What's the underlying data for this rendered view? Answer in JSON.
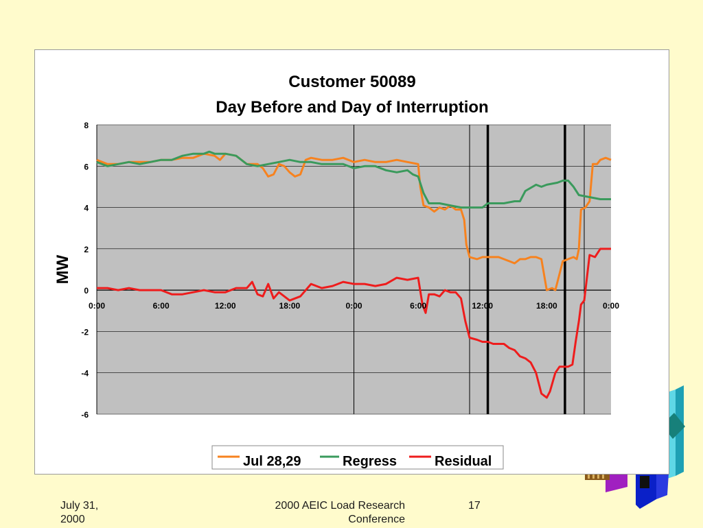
{
  "footer": {
    "date": "July 31, 2000",
    "conference": "2000 AEIC Load Research Conference",
    "page_number": "17"
  },
  "colors": {
    "slide_background": "#FFFBCC",
    "plot_background": "#C0C0C0",
    "jul_series": "#F7821E",
    "regress_series": "#3A9A5C",
    "residual_series": "#EE1C1C"
  },
  "chart_data": {
    "type": "line",
    "title": "Customer 50089",
    "subtitle": "Day Before and Day of Interruption",
    "xlabel": "",
    "ylabel": "MW",
    "ylim": [
      -6,
      8
    ],
    "yticks": [
      8,
      6,
      4,
      2,
      0,
      -2,
      -4,
      -6
    ],
    "xlim": [
      0,
      48
    ],
    "xticks": [
      {
        "value": 0,
        "label": "0:00"
      },
      {
        "value": 6,
        "label": "6:00"
      },
      {
        "value": 12,
        "label": "12:00"
      },
      {
        "value": 18,
        "label": "18:00"
      },
      {
        "value": 24,
        "label": "0:00"
      },
      {
        "value": 30,
        "label": "6:00"
      },
      {
        "value": 36,
        "label": "12:00"
      },
      {
        "value": 42,
        "label": "18:00"
      },
      {
        "value": 48,
        "label": "0:00"
      }
    ],
    "grid": true,
    "legend_position": "bottom",
    "vertical_markers": [
      {
        "x": 24,
        "style": "thin"
      },
      {
        "x": 34.8,
        "style": "thin"
      },
      {
        "x": 36.5,
        "style": "thick"
      },
      {
        "x": 43.7,
        "style": "thick"
      },
      {
        "x": 45.5,
        "style": "thin"
      }
    ],
    "series": [
      {
        "name": "Jul 28,29",
        "color": "#F7821E",
        "points": [
          [
            0,
            6.3
          ],
          [
            1,
            6.1
          ],
          [
            2,
            6.1
          ],
          [
            3,
            6.2
          ],
          [
            4,
            6.2
          ],
          [
            5,
            6.2
          ],
          [
            6,
            6.3
          ],
          [
            7,
            6.3
          ],
          [
            8,
            6.4
          ],
          [
            9,
            6.4
          ],
          [
            10,
            6.6
          ],
          [
            11,
            6.5
          ],
          [
            11.5,
            6.3
          ],
          [
            12,
            6.6
          ],
          [
            13,
            6.5
          ],
          [
            13.5,
            6.3
          ],
          [
            14,
            6.1
          ],
          [
            15,
            6.1
          ],
          [
            15.5,
            5.9
          ],
          [
            16,
            5.5
          ],
          [
            16.5,
            5.6
          ],
          [
            17,
            6.1
          ],
          [
            17.5,
            6.0
          ],
          [
            18,
            5.7
          ],
          [
            18.5,
            5.5
          ],
          [
            19,
            5.6
          ],
          [
            19.5,
            6.3
          ],
          [
            20,
            6.4
          ],
          [
            21,
            6.3
          ],
          [
            22,
            6.3
          ],
          [
            23,
            6.4
          ],
          [
            24,
            6.2
          ],
          [
            25,
            6.3
          ],
          [
            26,
            6.2
          ],
          [
            27,
            6.2
          ],
          [
            28,
            6.3
          ],
          [
            29,
            6.2
          ],
          [
            30,
            6.1
          ],
          [
            30.2,
            5.0
          ],
          [
            30.5,
            4.1
          ],
          [
            31,
            4.0
          ],
          [
            31.5,
            3.8
          ],
          [
            32,
            4.0
          ],
          [
            32.5,
            3.9
          ],
          [
            33,
            4.1
          ],
          [
            33.5,
            3.9
          ],
          [
            34,
            3.9
          ],
          [
            34.3,
            3.4
          ],
          [
            34.5,
            2.2
          ],
          [
            34.8,
            1.6
          ],
          [
            35.5,
            1.5
          ],
          [
            36,
            1.6
          ],
          [
            37,
            1.6
          ],
          [
            37.5,
            1.6
          ],
          [
            38,
            1.5
          ],
          [
            38.5,
            1.4
          ],
          [
            39,
            1.3
          ],
          [
            39.5,
            1.5
          ],
          [
            40,
            1.5
          ],
          [
            40.5,
            1.6
          ],
          [
            41,
            1.6
          ],
          [
            41.5,
            1.5
          ],
          [
            41.8,
            0.6
          ],
          [
            42,
            0.0
          ],
          [
            42.5,
            0.1
          ],
          [
            42.8,
            0.0
          ],
          [
            43,
            0.4
          ],
          [
            43.5,
            1.4
          ],
          [
            44,
            1.5
          ],
          [
            44.5,
            1.6
          ],
          [
            44.8,
            1.5
          ],
          [
            45,
            2.0
          ],
          [
            45.2,
            3.9
          ],
          [
            45.6,
            4.0
          ],
          [
            46,
            4.3
          ],
          [
            46.3,
            6.1
          ],
          [
            46.7,
            6.1
          ],
          [
            47,
            6.3
          ],
          [
            47.5,
            6.4
          ],
          [
            48,
            6.3
          ]
        ]
      },
      {
        "name": "Regress",
        "color": "#3A9A5C",
        "points": [
          [
            0,
            6.2
          ],
          [
            1,
            6.0
          ],
          [
            2,
            6.1
          ],
          [
            3,
            6.2
          ],
          [
            4,
            6.1
          ],
          [
            5,
            6.2
          ],
          [
            6,
            6.3
          ],
          [
            7,
            6.3
          ],
          [
            8,
            6.5
          ],
          [
            9,
            6.6
          ],
          [
            10,
            6.6
          ],
          [
            10.5,
            6.7
          ],
          [
            11,
            6.6
          ],
          [
            12,
            6.6
          ],
          [
            13,
            6.5
          ],
          [
            14,
            6.1
          ],
          [
            15,
            6.0
          ],
          [
            16,
            6.1
          ],
          [
            17,
            6.2
          ],
          [
            18,
            6.3
          ],
          [
            19,
            6.2
          ],
          [
            20,
            6.2
          ],
          [
            21,
            6.1
          ],
          [
            22,
            6.1
          ],
          [
            23,
            6.1
          ],
          [
            24,
            5.9
          ],
          [
            25,
            6.0
          ],
          [
            26,
            6.0
          ],
          [
            27,
            5.8
          ],
          [
            28,
            5.7
          ],
          [
            29,
            5.8
          ],
          [
            29.5,
            5.6
          ],
          [
            30,
            5.5
          ],
          [
            30.5,
            4.7
          ],
          [
            31,
            4.2
          ],
          [
            32,
            4.2
          ],
          [
            33,
            4.1
          ],
          [
            34,
            4.0
          ],
          [
            35,
            4.0
          ],
          [
            36,
            4.0
          ],
          [
            36.5,
            4.2
          ],
          [
            37,
            4.2
          ],
          [
            38,
            4.2
          ],
          [
            39,
            4.3
          ],
          [
            39.5,
            4.3
          ],
          [
            40,
            4.8
          ],
          [
            41,
            5.1
          ],
          [
            41.5,
            5.0
          ],
          [
            42,
            5.1
          ],
          [
            43,
            5.2
          ],
          [
            43.5,
            5.3
          ],
          [
            44,
            5.3
          ],
          [
            44.5,
            5.0
          ],
          [
            45,
            4.6
          ],
          [
            46,
            4.5
          ],
          [
            47,
            4.4
          ],
          [
            48,
            4.4
          ]
        ]
      },
      {
        "name": "Residual",
        "color": "#EE1C1C",
        "points": [
          [
            0,
            0.1
          ],
          [
            1,
            0.1
          ],
          [
            2,
            0.0
          ],
          [
            3,
            0.1
          ],
          [
            4,
            0.0
          ],
          [
            5,
            0.0
          ],
          [
            6,
            0.0
          ],
          [
            7,
            -0.2
          ],
          [
            8,
            -0.2
          ],
          [
            9,
            -0.1
          ],
          [
            10,
            0.0
          ],
          [
            11,
            -0.1
          ],
          [
            12,
            -0.1
          ],
          [
            13,
            0.1
          ],
          [
            14,
            0.1
          ],
          [
            14.5,
            0.4
          ],
          [
            15,
            -0.2
          ],
          [
            15.5,
            -0.3
          ],
          [
            16,
            0.3
          ],
          [
            16.5,
            -0.4
          ],
          [
            17,
            -0.1
          ],
          [
            18,
            -0.5
          ],
          [
            19,
            -0.3
          ],
          [
            20,
            0.3
          ],
          [
            21,
            0.1
          ],
          [
            22,
            0.2
          ],
          [
            23,
            0.4
          ],
          [
            24,
            0.3
          ],
          [
            25,
            0.3
          ],
          [
            26,
            0.2
          ],
          [
            27,
            0.3
          ],
          [
            28,
            0.6
          ],
          [
            29,
            0.5
          ],
          [
            30,
            0.6
          ],
          [
            30.4,
            -0.7
          ],
          [
            30.7,
            -1.1
          ],
          [
            31,
            -0.2
          ],
          [
            31.5,
            -0.2
          ],
          [
            32,
            -0.3
          ],
          [
            32.5,
            0.0
          ],
          [
            33,
            -0.1
          ],
          [
            33.5,
            -0.1
          ],
          [
            34,
            -0.4
          ],
          [
            34.4,
            -1.5
          ],
          [
            34.8,
            -2.3
          ],
          [
            35.5,
            -2.4
          ],
          [
            36,
            -2.5
          ],
          [
            36.5,
            -2.5
          ],
          [
            37,
            -2.6
          ],
          [
            38,
            -2.6
          ],
          [
            38.5,
            -2.8
          ],
          [
            39,
            -2.9
          ],
          [
            39.5,
            -3.2
          ],
          [
            40,
            -3.3
          ],
          [
            40.5,
            -3.5
          ],
          [
            41,
            -4.0
          ],
          [
            41.5,
            -5.0
          ],
          [
            42,
            -5.2
          ],
          [
            42.3,
            -4.9
          ],
          [
            42.8,
            -4.0
          ],
          [
            43.2,
            -3.7
          ],
          [
            43.7,
            -3.7
          ],
          [
            44,
            -3.7
          ],
          [
            44.4,
            -3.6
          ],
          [
            44.7,
            -2.5
          ],
          [
            45,
            -1.5
          ],
          [
            45.2,
            -0.7
          ],
          [
            45.5,
            -0.5
          ],
          [
            46,
            1.7
          ],
          [
            46.5,
            1.6
          ],
          [
            47,
            2.0
          ],
          [
            48,
            2.0
          ]
        ]
      }
    ]
  }
}
